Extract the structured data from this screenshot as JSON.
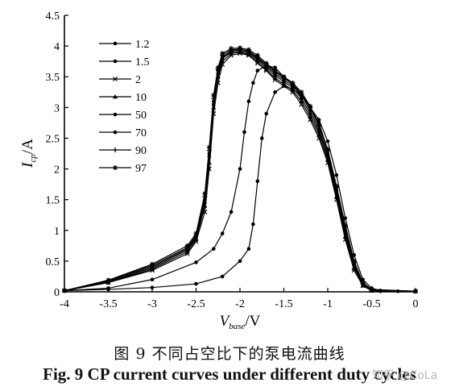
{
  "caption": {
    "chinese": "图 9   不同占空比下的泵电流曲线",
    "english": "Fig. 9    CP current curves under different duty cycles"
  },
  "watermark": "知乎 @CoLa",
  "chart_data": {
    "type": "line",
    "xlabel": "V_base/V",
    "ylabel": "I_cp/A",
    "xlim": [
      -4,
      0
    ],
    "ylim": [
      0,
      4.5
    ],
    "xticks": [
      "-4",
      "-3.5",
      "-3",
      "-2.5",
      "-2",
      "-1.5",
      "-1",
      "-0.5",
      "0"
    ],
    "yticks": [
      "0",
      "0.5",
      "1",
      "1.5",
      "2",
      "2.5",
      "3",
      "3.5",
      "4",
      "4.5"
    ],
    "grid": false,
    "legend_position": "top-left",
    "series": [
      {
        "name": "1.2",
        "marker": "dot",
        "points": [
          [
            -4,
            0.02
          ],
          [
            -3.5,
            0.04
          ],
          [
            -3,
            0.07
          ],
          [
            -2.5,
            0.13
          ],
          [
            -2.2,
            0.25
          ],
          [
            -2,
            0.5
          ],
          [
            -1.9,
            0.7
          ],
          [
            -1.85,
            1.1
          ],
          [
            -1.8,
            1.8
          ],
          [
            -1.75,
            2.5
          ],
          [
            -1.7,
            2.9
          ],
          [
            -1.6,
            3.25
          ],
          [
            -1.5,
            3.35
          ],
          [
            -1.4,
            3.3
          ],
          [
            -1.3,
            3.2
          ],
          [
            -1.2,
            3.0
          ],
          [
            -1.1,
            2.8
          ],
          [
            -1.0,
            2.45
          ],
          [
            -0.9,
            1.9
          ],
          [
            -0.8,
            1.2
          ],
          [
            -0.7,
            0.6
          ],
          [
            -0.6,
            0.2
          ],
          [
            -0.5,
            0.06
          ],
          [
            -0.4,
            0.02
          ],
          [
            -0.2,
            0.01
          ],
          [
            0,
            0.01
          ]
        ]
      },
      {
        "name": "1.5",
        "marker": "dot",
        "points": [
          [
            -4,
            0.02
          ],
          [
            -3.5,
            0.06
          ],
          [
            -3,
            0.2
          ],
          [
            -2.5,
            0.48
          ],
          [
            -2.3,
            0.7
          ],
          [
            -2.2,
            0.95
          ],
          [
            -2.1,
            1.3
          ],
          [
            -2.0,
            2.0
          ],
          [
            -1.95,
            2.6
          ],
          [
            -1.9,
            3.1
          ],
          [
            -1.85,
            3.4
          ],
          [
            -1.8,
            3.6
          ],
          [
            -1.7,
            3.68
          ],
          [
            -1.6,
            3.65
          ],
          [
            -1.5,
            3.5
          ],
          [
            -1.4,
            3.38
          ],
          [
            -1.3,
            3.2
          ],
          [
            -1.2,
            3.0
          ],
          [
            -1.1,
            2.75
          ],
          [
            -1.0,
            2.3
          ],
          [
            -0.9,
            1.7
          ],
          [
            -0.8,
            1.0
          ],
          [
            -0.7,
            0.45
          ],
          [
            -0.6,
            0.12
          ],
          [
            -0.5,
            0.03
          ],
          [
            -0.4,
            0.01
          ],
          [
            0,
            0.01
          ]
        ]
      },
      {
        "name": "2",
        "marker": "x",
        "points": [
          [
            -4,
            0.02
          ],
          [
            -3.5,
            0.15
          ],
          [
            -3,
            0.35
          ],
          [
            -2.6,
            0.62
          ],
          [
            -2.5,
            0.82
          ],
          [
            -2.4,
            1.3
          ],
          [
            -2.35,
            2.0
          ],
          [
            -2.3,
            2.9
          ],
          [
            -2.25,
            3.4
          ],
          [
            -2.2,
            3.7
          ],
          [
            -2.1,
            3.85
          ],
          [
            -2.0,
            3.88
          ],
          [
            -1.9,
            3.85
          ],
          [
            -1.8,
            3.72
          ],
          [
            -1.7,
            3.6
          ],
          [
            -1.6,
            3.45
          ],
          [
            -1.5,
            3.35
          ],
          [
            -1.4,
            3.25
          ],
          [
            -1.3,
            3.05
          ],
          [
            -1.2,
            2.8
          ],
          [
            -1.1,
            2.5
          ],
          [
            -1.0,
            2.1
          ],
          [
            -0.9,
            1.5
          ],
          [
            -0.8,
            0.85
          ],
          [
            -0.7,
            0.35
          ],
          [
            -0.6,
            0.1
          ],
          [
            -0.5,
            0.02
          ],
          [
            0,
            0.01
          ]
        ]
      },
      {
        "name": "10",
        "marker": "triangle",
        "points": [
          [
            -4,
            0.02
          ],
          [
            -3.5,
            0.15
          ],
          [
            -3,
            0.37
          ],
          [
            -2.6,
            0.65
          ],
          [
            -2.5,
            0.85
          ],
          [
            -2.4,
            1.4
          ],
          [
            -2.35,
            2.1
          ],
          [
            -2.3,
            3.0
          ],
          [
            -2.25,
            3.5
          ],
          [
            -2.2,
            3.75
          ],
          [
            -2.1,
            3.88
          ],
          [
            -2.0,
            3.9
          ],
          [
            -1.9,
            3.86
          ],
          [
            -1.8,
            3.75
          ],
          [
            -1.7,
            3.62
          ],
          [
            -1.6,
            3.48
          ],
          [
            -1.5,
            3.38
          ],
          [
            -1.4,
            3.28
          ],
          [
            -1.3,
            3.1
          ],
          [
            -1.2,
            2.85
          ],
          [
            -1.1,
            2.55
          ],
          [
            -1.0,
            2.15
          ],
          [
            -0.9,
            1.55
          ],
          [
            -0.8,
            0.9
          ],
          [
            -0.7,
            0.38
          ],
          [
            -0.6,
            0.1
          ],
          [
            -0.5,
            0.02
          ],
          [
            0,
            0.01
          ]
        ]
      },
      {
        "name": "50",
        "marker": "dot",
        "points": [
          [
            -4,
            0.02
          ],
          [
            -3.5,
            0.16
          ],
          [
            -3,
            0.39
          ],
          [
            -2.6,
            0.68
          ],
          [
            -2.5,
            0.88
          ],
          [
            -2.4,
            1.45
          ],
          [
            -2.35,
            2.2
          ],
          [
            -2.3,
            3.05
          ],
          [
            -2.25,
            3.55
          ],
          [
            -2.2,
            3.8
          ],
          [
            -2.1,
            3.9
          ],
          [
            -2.0,
            3.92
          ],
          [
            -1.9,
            3.88
          ],
          [
            -1.8,
            3.78
          ],
          [
            -1.7,
            3.65
          ],
          [
            -1.6,
            3.52
          ],
          [
            -1.5,
            3.42
          ],
          [
            -1.4,
            3.32
          ],
          [
            -1.3,
            3.15
          ],
          [
            -1.2,
            2.9
          ],
          [
            -1.1,
            2.6
          ],
          [
            -1.0,
            2.2
          ],
          [
            -0.9,
            1.6
          ],
          [
            -0.8,
            0.95
          ],
          [
            -0.7,
            0.42
          ],
          [
            -0.6,
            0.12
          ],
          [
            -0.5,
            0.03
          ],
          [
            0,
            0.01
          ]
        ]
      },
      {
        "name": "70",
        "marker": "dot",
        "points": [
          [
            -4,
            0.02
          ],
          [
            -3.5,
            0.17
          ],
          [
            -3,
            0.41
          ],
          [
            -2.6,
            0.7
          ],
          [
            -2.5,
            0.9
          ],
          [
            -2.4,
            1.5
          ],
          [
            -2.35,
            2.25
          ],
          [
            -2.3,
            3.1
          ],
          [
            -2.25,
            3.6
          ],
          [
            -2.2,
            3.82
          ],
          [
            -2.1,
            3.92
          ],
          [
            -2.0,
            3.94
          ],
          [
            -1.9,
            3.9
          ],
          [
            -1.8,
            3.8
          ],
          [
            -1.7,
            3.68
          ],
          [
            -1.6,
            3.55
          ],
          [
            -1.5,
            3.45
          ],
          [
            -1.4,
            3.35
          ],
          [
            -1.3,
            3.2
          ],
          [
            -1.2,
            2.95
          ],
          [
            -1.1,
            2.65
          ],
          [
            -1.0,
            2.25
          ],
          [
            -0.9,
            1.65
          ],
          [
            -0.8,
            1.0
          ],
          [
            -0.7,
            0.45
          ],
          [
            -0.6,
            0.13
          ],
          [
            -0.5,
            0.03
          ],
          [
            0,
            0.01
          ]
        ]
      },
      {
        "name": "90",
        "marker": "plus",
        "points": [
          [
            -4,
            0.02
          ],
          [
            -3.5,
            0.18
          ],
          [
            -3,
            0.43
          ],
          [
            -2.6,
            0.72
          ],
          [
            -2.5,
            0.92
          ],
          [
            -2.4,
            1.55
          ],
          [
            -2.35,
            2.3
          ],
          [
            -2.3,
            3.15
          ],
          [
            -2.25,
            3.62
          ],
          [
            -2.2,
            3.85
          ],
          [
            -2.1,
            3.94
          ],
          [
            -2.0,
            3.95
          ],
          [
            -1.9,
            3.92
          ],
          [
            -1.8,
            3.82
          ],
          [
            -1.7,
            3.7
          ],
          [
            -1.6,
            3.58
          ],
          [
            -1.5,
            3.48
          ],
          [
            -1.4,
            3.38
          ],
          [
            -1.3,
            3.22
          ],
          [
            -1.2,
            3.0
          ],
          [
            -1.1,
            2.7
          ],
          [
            -1.0,
            2.3
          ],
          [
            -0.9,
            1.7
          ],
          [
            -0.8,
            1.05
          ],
          [
            -0.7,
            0.48
          ],
          [
            -0.6,
            0.14
          ],
          [
            -0.5,
            0.03
          ],
          [
            0,
            0.01
          ]
        ]
      },
      {
        "name": "97",
        "marker": "star",
        "points": [
          [
            -4,
            0.02
          ],
          [
            -3.5,
            0.19
          ],
          [
            -3,
            0.45
          ],
          [
            -2.6,
            0.75
          ],
          [
            -2.5,
            0.95
          ],
          [
            -2.4,
            1.6
          ],
          [
            -2.35,
            2.35
          ],
          [
            -2.3,
            3.2
          ],
          [
            -2.25,
            3.65
          ],
          [
            -2.2,
            3.88
          ],
          [
            -2.1,
            3.96
          ],
          [
            -2.0,
            3.97
          ],
          [
            -1.9,
            3.94
          ],
          [
            -1.8,
            3.85
          ],
          [
            -1.7,
            3.72
          ],
          [
            -1.6,
            3.6
          ],
          [
            -1.5,
            3.5
          ],
          [
            -1.4,
            3.4
          ],
          [
            -1.3,
            3.25
          ],
          [
            -1.2,
            3.02
          ],
          [
            -1.1,
            2.72
          ],
          [
            -1.0,
            2.32
          ],
          [
            -0.9,
            1.72
          ],
          [
            -0.8,
            1.08
          ],
          [
            -0.7,
            0.5
          ],
          [
            -0.6,
            0.15
          ],
          [
            -0.5,
            0.04
          ],
          [
            0,
            0.01
          ]
        ]
      }
    ]
  }
}
